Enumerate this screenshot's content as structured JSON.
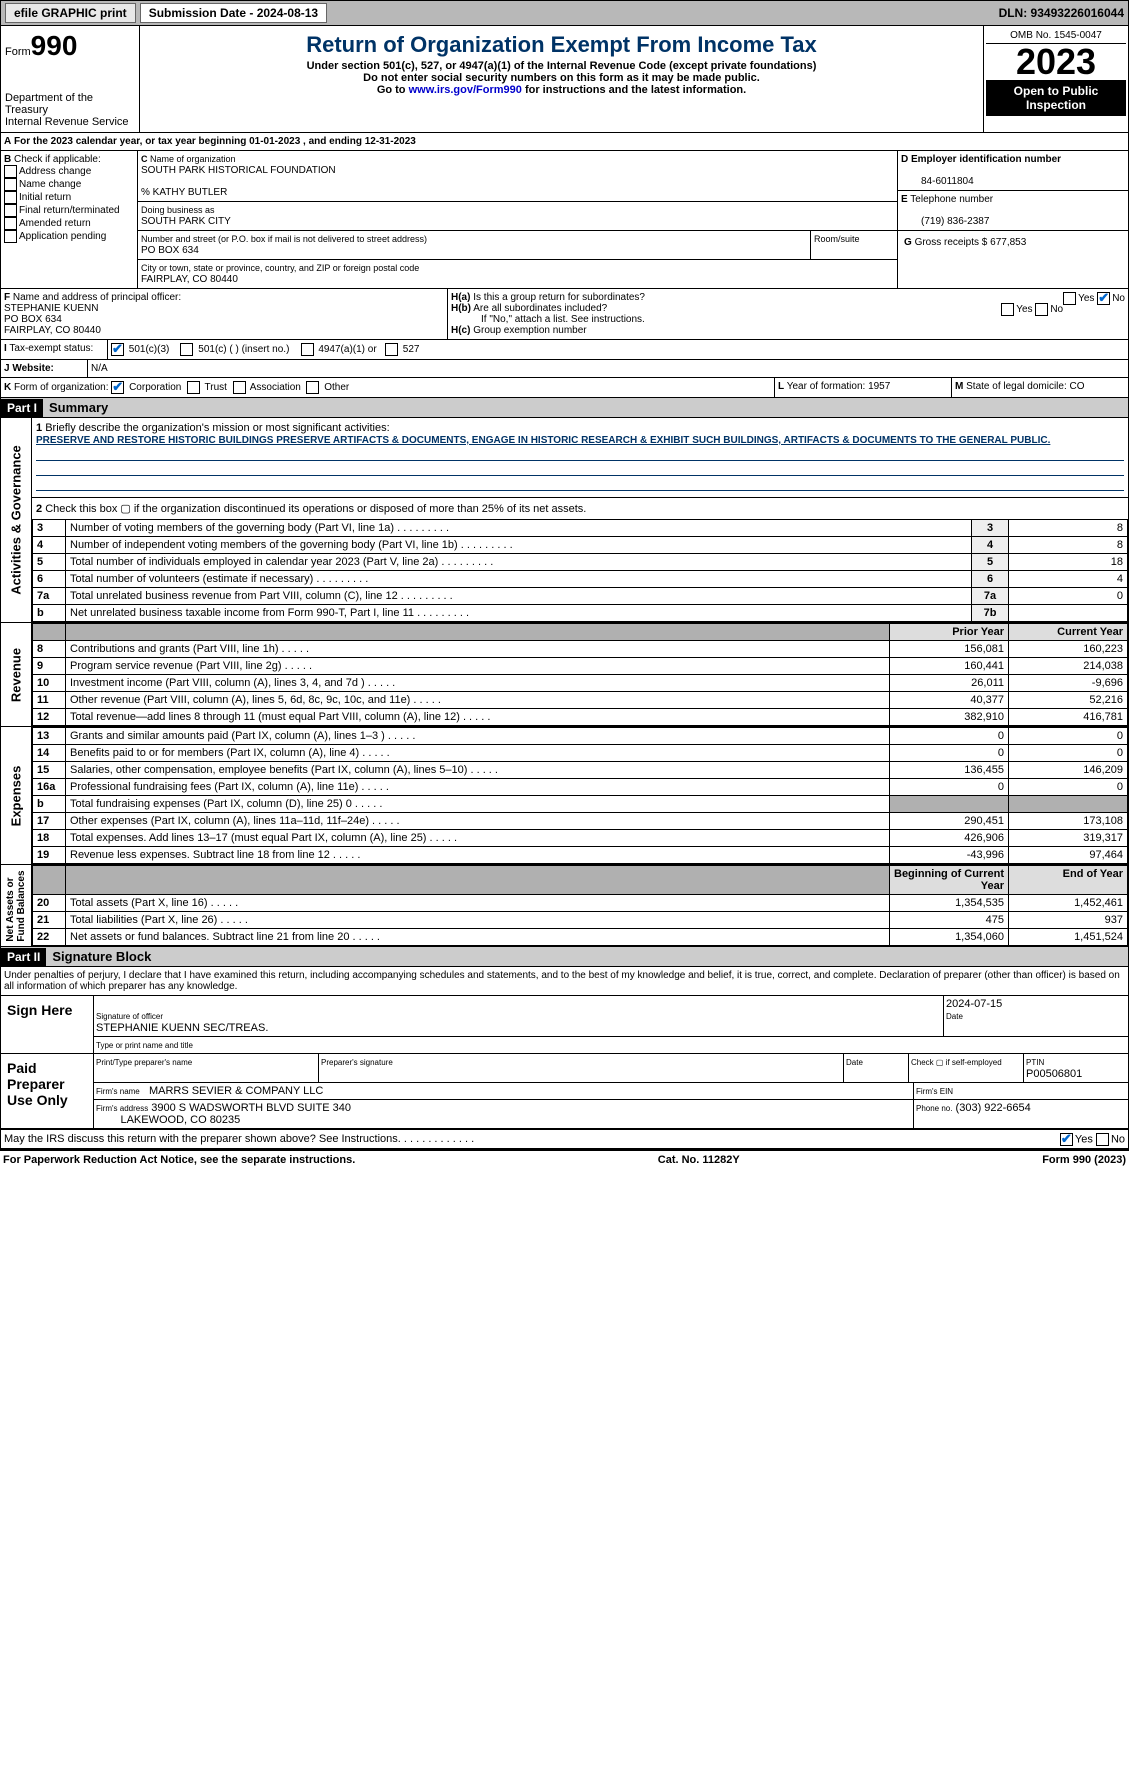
{
  "topbar": {
    "efile": "efile GRAPHIC print",
    "submission": "Submission Date - 2024-08-13",
    "dln": "DLN: 93493226016044"
  },
  "header": {
    "form_label": "Form",
    "form_no": "990",
    "dept": "Department of the Treasury",
    "irs": "Internal Revenue Service",
    "title": "Return of Organization Exempt From Income Tax",
    "sub1": "Under section 501(c), 527, or 4947(a)(1) of the Internal Revenue Code (except private foundations)",
    "sub2": "Do not enter social security numbers on this form as it may be made public.",
    "sub3": "Go to ",
    "link": "www.irs.gov/Form990",
    "sub4": " for instructions and the latest information.",
    "omb": "OMB No. 1545-0047",
    "year": "2023",
    "open": "Open to Public Inspection"
  },
  "periodA": {
    "text": "For the 2023 calendar year, or tax year beginning 01-01-2023   , and ending 12-31-2023"
  },
  "boxB": {
    "label": "Check if applicable:",
    "items": [
      "Address change",
      "Name change",
      "Initial return",
      "Final return/terminated",
      "Amended return",
      "Application pending"
    ]
  },
  "boxC": {
    "name_lbl": "Name of organization",
    "name": "SOUTH PARK HISTORICAL FOUNDATION",
    "care": "% KATHY BUTLER",
    "dba_lbl": "Doing business as",
    "dba": "SOUTH PARK CITY",
    "street_lbl": "Number and street (or P.O. box if mail is not delivered to street address)",
    "street": "PO BOX 634",
    "room_lbl": "Room/suite",
    "city_lbl": "City or town, state or province, country, and ZIP or foreign postal code",
    "city": "FAIRPLAY, CO  80440"
  },
  "boxD": {
    "lbl": "Employer identification number",
    "val": "84-6011804"
  },
  "boxE": {
    "lbl": "Telephone number",
    "val": "(719) 836-2387"
  },
  "boxG": {
    "lbl": "Gross receipts $",
    "val": "677,853"
  },
  "boxF": {
    "lbl": "Name and address of principal officer:",
    "name": "STEPHANIE KUENN",
    "street": "PO BOX 634",
    "city": "FAIRPLAY, CO  80440"
  },
  "boxH": {
    "a": "Is this a group return for subordinates?",
    "b": "Are all subordinates included?",
    "note": "If \"No,\" attach a list. See instructions.",
    "c": "Group exemption number"
  },
  "boxI": {
    "lbl": "Tax-exempt status:",
    "o1": "501(c)(3)",
    "o2": "501(c) (  ) (insert no.)",
    "o3": "4947(a)(1) or",
    "o4": "527"
  },
  "boxJ": {
    "lbl": "Website:",
    "val": "N/A"
  },
  "boxK": {
    "lbl": "Form of organization:",
    "o1": "Corporation",
    "o2": "Trust",
    "o3": "Association",
    "o4": "Other"
  },
  "boxL": {
    "lbl": "Year of formation: ",
    "val": "1957"
  },
  "boxM": {
    "lbl": "State of legal domicile: ",
    "val": "CO"
  },
  "part1": {
    "hdr": "Part I",
    "title": "Summary",
    "l1_lbl": "Briefly describe the organization's mission or most significant activities:",
    "l1_txt": "PRESERVE AND RESTORE HISTORIC BUILDINGS PRESERVE ARTIFACTS & DOCUMENTS, ENGAGE IN HISTORIC RESEARCH & EXHIBIT SUCH BUILDINGS, ARTIFACTS & DOCUMENTS TO THE GENERAL PUBLIC.",
    "l2": "Check this box  ▢  if the organization discontinued its operations or disposed of more than 25% of its net assets.",
    "lines_gov": [
      {
        "n": "3",
        "t": "Number of voting members of the governing body (Part VI, line 1a)",
        "b": "3",
        "v": "8"
      },
      {
        "n": "4",
        "t": "Number of independent voting members of the governing body (Part VI, line 1b)",
        "b": "4",
        "v": "8"
      },
      {
        "n": "5",
        "t": "Total number of individuals employed in calendar year 2023 (Part V, line 2a)",
        "b": "5",
        "v": "18"
      },
      {
        "n": "6",
        "t": "Total number of volunteers (estimate if necessary)",
        "b": "6",
        "v": "4"
      },
      {
        "n": "7a",
        "t": "Total unrelated business revenue from Part VIII, column (C), line 12",
        "b": "7a",
        "v": "0"
      },
      {
        "n": "b",
        "t": "Net unrelated business taxable income from Form 990-T, Part I, line 11",
        "b": "7b",
        "v": ""
      }
    ],
    "col_prior": "Prior Year",
    "col_curr": "Current Year",
    "rev": [
      {
        "n": "8",
        "t": "Contributions and grants (Part VIII, line 1h)",
        "p": "156,081",
        "c": "160,223"
      },
      {
        "n": "9",
        "t": "Program service revenue (Part VIII, line 2g)",
        "p": "160,441",
        "c": "214,038"
      },
      {
        "n": "10",
        "t": "Investment income (Part VIII, column (A), lines 3, 4, and 7d )",
        "p": "26,011",
        "c": "-9,696"
      },
      {
        "n": "11",
        "t": "Other revenue (Part VIII, column (A), lines 5, 6d, 8c, 9c, 10c, and 11e)",
        "p": "40,377",
        "c": "52,216"
      },
      {
        "n": "12",
        "t": "Total revenue—add lines 8 through 11 (must equal Part VIII, column (A), line 12)",
        "p": "382,910",
        "c": "416,781"
      }
    ],
    "exp": [
      {
        "n": "13",
        "t": "Grants and similar amounts paid (Part IX, column (A), lines 1–3 )",
        "p": "0",
        "c": "0"
      },
      {
        "n": "14",
        "t": "Benefits paid to or for members (Part IX, column (A), line 4)",
        "p": "0",
        "c": "0"
      },
      {
        "n": "15",
        "t": "Salaries, other compensation, employee benefits (Part IX, column (A), lines 5–10)",
        "p": "136,455",
        "c": "146,209"
      },
      {
        "n": "16a",
        "t": "Professional fundraising fees (Part IX, column (A), line 11e)",
        "p": "0",
        "c": "0"
      },
      {
        "n": "b",
        "t": "Total fundraising expenses (Part IX, column (D), line 25) 0",
        "p": "",
        "c": "",
        "grey": true
      },
      {
        "n": "17",
        "t": "Other expenses (Part IX, column (A), lines 11a–11d, 11f–24e)",
        "p": "290,451",
        "c": "173,108"
      },
      {
        "n": "18",
        "t": "Total expenses. Add lines 13–17 (must equal Part IX, column (A), line 25)",
        "p": "426,906",
        "c": "319,317"
      },
      {
        "n": "19",
        "t": "Revenue less expenses. Subtract line 18 from line 12",
        "p": "-43,996",
        "c": "97,464"
      }
    ],
    "col_beg": "Beginning of Current Year",
    "col_end": "End of Year",
    "net": [
      {
        "n": "20",
        "t": "Total assets (Part X, line 16)",
        "p": "1,354,535",
        "c": "1,452,461"
      },
      {
        "n": "21",
        "t": "Total liabilities (Part X, line 26)",
        "p": "475",
        "c": "937"
      },
      {
        "n": "22",
        "t": "Net assets or fund balances. Subtract line 21 from line 20",
        "p": "1,354,060",
        "c": "1,451,524"
      }
    ]
  },
  "part2": {
    "hdr": "Part II",
    "title": "Signature Block",
    "decl": "Under penalties of perjury, I declare that I have examined this return, including accompanying schedules and statements, and to the best of my knowledge and belief, it is true, correct, and complete. Declaration of preparer (other than officer) is based on all information of which preparer has any knowledge.",
    "sign_here": "Sign Here",
    "sig_lbl": "Signature of officer",
    "sig_name": "STEPHANIE KUENN  SEC/TREAS.",
    "type_lbl": "Type or print name and title",
    "date_lbl": "Date",
    "date": "2024-07-15",
    "paid": "Paid Preparer Use Only",
    "prep_name_lbl": "Print/Type preparer's name",
    "prep_sig_lbl": "Preparer's signature",
    "check_lbl": "Check ▢ if self-employed",
    "ptin_lbl": "PTIN",
    "ptin": "P00506801",
    "firm_name_lbl": "Firm's name",
    "firm_name": "MARRS SEVIER & COMPANY LLC",
    "firm_ein_lbl": "Firm's EIN",
    "firm_addr_lbl": "Firm's address",
    "firm_addr": "3900 S WADSWORTH BLVD SUITE 340",
    "firm_city": "LAKEWOOD, CO  80235",
    "phone_lbl": "Phone no.",
    "phone": "(303) 922-6654",
    "discuss": "May the IRS discuss this return with the preparer shown above? See Instructions."
  },
  "footer": {
    "l": "For Paperwork Reduction Act Notice, see the separate instructions.",
    "c": "Cat. No. 11282Y",
    "r": "Form 990 (2023)"
  }
}
